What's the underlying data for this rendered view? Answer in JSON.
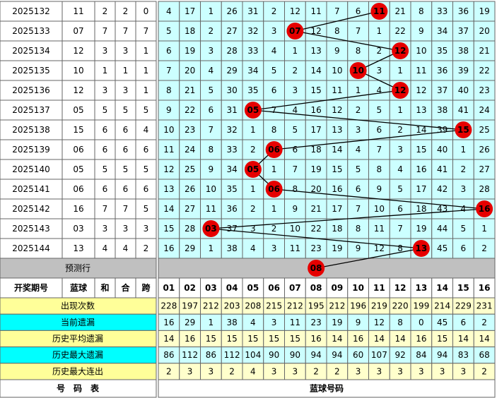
{
  "header": {
    "period": "开奖期号",
    "blue": "蓝球",
    "sum": "和",
    "he": "合",
    "span": "跨",
    "numbers": [
      "01",
      "02",
      "03",
      "04",
      "05",
      "06",
      "07",
      "08",
      "09",
      "10",
      "11",
      "12",
      "13",
      "14",
      "15",
      "16"
    ]
  },
  "rows": [
    {
      "period": "2025132",
      "blue": "11",
      "sum": "2",
      "he": "2",
      "span": "0",
      "cells": [
        "4",
        "17",
        "1",
        "26",
        "31",
        "2",
        "12",
        "11",
        "7",
        "6",
        "11",
        "21",
        "8",
        "33",
        "36",
        "19"
      ]
    },
    {
      "period": "2025133",
      "blue": "07",
      "sum": "7",
      "he": "7",
      "span": "7",
      "cells": [
        "5",
        "18",
        "2",
        "27",
        "32",
        "3",
        "07",
        "12",
        "8",
        "7",
        "1",
        "22",
        "9",
        "34",
        "37",
        "20"
      ]
    },
    {
      "period": "2025134",
      "blue": "12",
      "sum": "3",
      "he": "3",
      "span": "1",
      "cells": [
        "6",
        "19",
        "3",
        "28",
        "33",
        "4",
        "1",
        "13",
        "9",
        "8",
        "2",
        "12",
        "10",
        "35",
        "38",
        "21"
      ]
    },
    {
      "period": "2025135",
      "blue": "10",
      "sum": "1",
      "he": "1",
      "span": "1",
      "cells": [
        "7",
        "20",
        "4",
        "29",
        "34",
        "5",
        "2",
        "14",
        "10",
        "10",
        "3",
        "1",
        "11",
        "36",
        "39",
        "22"
      ]
    },
    {
      "period": "2025136",
      "blue": "12",
      "sum": "3",
      "he": "3",
      "span": "1",
      "cells": [
        "8",
        "21",
        "5",
        "30",
        "35",
        "6",
        "3",
        "15",
        "11",
        "1",
        "4",
        "12",
        "12",
        "37",
        "40",
        "23"
      ]
    },
    {
      "period": "2025137",
      "blue": "05",
      "sum": "5",
      "he": "5",
      "span": "5",
      "cells": [
        "9",
        "22",
        "6",
        "31",
        "05",
        "7",
        "4",
        "16",
        "12",
        "2",
        "5",
        "1",
        "13",
        "38",
        "41",
        "24"
      ]
    },
    {
      "period": "2025138",
      "blue": "15",
      "sum": "6",
      "he": "6",
      "span": "4",
      "cells": [
        "10",
        "23",
        "7",
        "32",
        "1",
        "8",
        "5",
        "17",
        "13",
        "3",
        "6",
        "2",
        "14",
        "39",
        "15",
        "25"
      ]
    },
    {
      "period": "2025139",
      "blue": "06",
      "sum": "6",
      "he": "6",
      "span": "6",
      "cells": [
        "11",
        "24",
        "8",
        "33",
        "2",
        "06",
        "6",
        "18",
        "14",
        "4",
        "7",
        "3",
        "15",
        "40",
        "1",
        "26"
      ]
    },
    {
      "period": "2025140",
      "blue": "05",
      "sum": "5",
      "he": "5",
      "span": "5",
      "cells": [
        "12",
        "25",
        "9",
        "34",
        "05",
        "1",
        "7",
        "19",
        "15",
        "5",
        "8",
        "4",
        "16",
        "41",
        "2",
        "27"
      ]
    },
    {
      "period": "2025141",
      "blue": "06",
      "sum": "6",
      "he": "6",
      "span": "6",
      "cells": [
        "13",
        "26",
        "10",
        "35",
        "1",
        "06",
        "8",
        "20",
        "16",
        "6",
        "9",
        "5",
        "17",
        "42",
        "3",
        "28"
      ]
    },
    {
      "period": "2025142",
      "blue": "16",
      "sum": "7",
      "he": "7",
      "span": "5",
      "cells": [
        "14",
        "27",
        "11",
        "36",
        "2",
        "1",
        "9",
        "21",
        "17",
        "7",
        "10",
        "6",
        "18",
        "43",
        "4",
        "16"
      ]
    },
    {
      "period": "2025143",
      "blue": "03",
      "sum": "3",
      "he": "3",
      "span": "3",
      "cells": [
        "15",
        "28",
        "03",
        "37",
        "3",
        "2",
        "10",
        "22",
        "18",
        "8",
        "11",
        "7",
        "19",
        "44",
        "5",
        "1"
      ]
    },
    {
      "period": "2025144",
      "blue": "13",
      "sum": "4",
      "he": "4",
      "span": "2",
      "cells": [
        "16",
        "29",
        "1",
        "38",
        "4",
        "3",
        "11",
        "23",
        "19",
        "9",
        "12",
        "8",
        "13",
        "45",
        "6",
        "2"
      ]
    }
  ],
  "prediction": {
    "label": "预测行",
    "ball": "08"
  },
  "stats": [
    {
      "label": "出现次数",
      "values": [
        "228",
        "197",
        "212",
        "203",
        "208",
        "215",
        "212",
        "195",
        "212",
        "196",
        "219",
        "220",
        "199",
        "214",
        "229",
        "231"
      ]
    },
    {
      "label": "当前遗漏",
      "values": [
        "16",
        "29",
        "1",
        "38",
        "4",
        "3",
        "11",
        "23",
        "19",
        "9",
        "12",
        "8",
        "0",
        "45",
        "6",
        "2"
      ]
    },
    {
      "label": "历史平均遗漏",
      "values": [
        "14",
        "16",
        "15",
        "15",
        "15",
        "15",
        "15",
        "16",
        "14",
        "16",
        "14",
        "14",
        "16",
        "15",
        "14",
        "14"
      ]
    },
    {
      "label": "历史最大遗漏",
      "values": [
        "86",
        "112",
        "86",
        "112",
        "104",
        "90",
        "90",
        "94",
        "94",
        "60",
        "107",
        "92",
        "84",
        "94",
        "83",
        "68"
      ]
    },
    {
      "label": "历史最大连出",
      "values": [
        "2",
        "3",
        "3",
        "2",
        "4",
        "3",
        "3",
        "2",
        "2",
        "3",
        "3",
        "3",
        "3",
        "3",
        "3",
        "2"
      ]
    }
  ],
  "footer": {
    "left": "号　码　表",
    "right": "蓝球号码"
  }
}
